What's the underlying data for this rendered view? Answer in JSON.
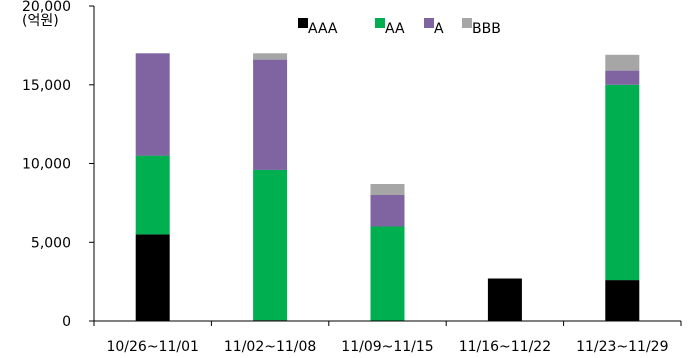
{
  "chart_data": {
    "type": "bar",
    "stacked": true,
    "unit_label": "(억원)",
    "categories": [
      "10/26~11/01",
      "11/02~11/08",
      "11/09~11/15",
      "11/16~11/22",
      "11/23~11/29"
    ],
    "series": [
      {
        "name": "AAA",
        "color": "#000000",
        "values": [
          5500,
          50,
          0,
          2700,
          2600
        ]
      },
      {
        "name": "AA",
        "color": "#00b050",
        "values": [
          5000,
          9550,
          6000,
          0,
          12400
        ]
      },
      {
        "name": "A",
        "color": "#8064a2",
        "values": [
          6500,
          7000,
          2000,
          0,
          900
        ]
      },
      {
        "name": "BBB",
        "color": "#a6a6a6",
        "values": [
          0,
          400,
          700,
          0,
          1000
        ]
      }
    ],
    "yticks": [
      "0",
      "5,000",
      "10,000",
      "15,000",
      "20,000"
    ],
    "ylim": [
      0,
      20000
    ],
    "legend_position": "top",
    "grid": false
  }
}
